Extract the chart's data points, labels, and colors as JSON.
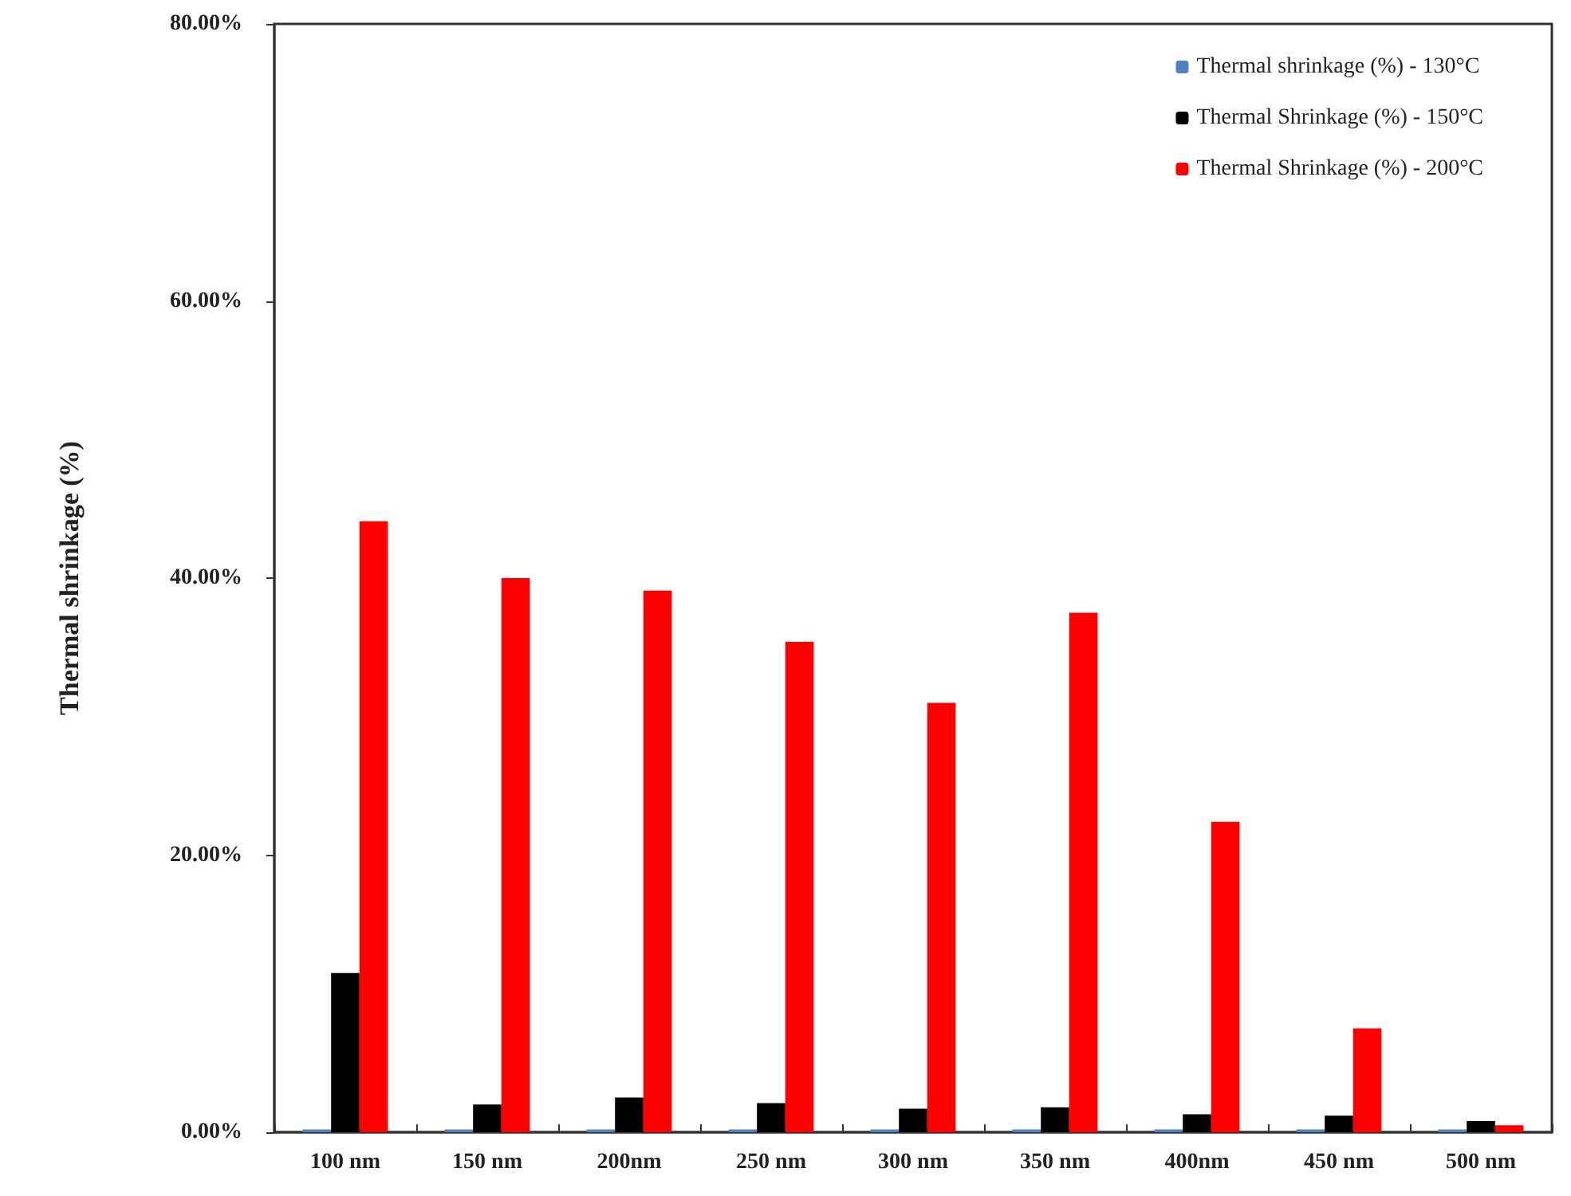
{
  "chart_data": {
    "type": "bar",
    "ylabel": "Thermal shrinkage (%)",
    "categories": [
      "100 nm",
      "150 nm",
      "200nm",
      "250 nm",
      "300 nm",
      "350 nm",
      "400nm",
      "450 nm",
      "500 nm"
    ],
    "series": [
      {
        "name": "Thermal shrinkage (%) - 130°C",
        "color": "#4f81bd",
        "values": [
          0.2,
          0.2,
          0.2,
          0.2,
          0.2,
          0.2,
          0.2,
          0.2,
          0.2
        ]
      },
      {
        "name": "Thermal Shrinkage (%) - 150°C",
        "color": "#000000",
        "values": [
          11.5,
          2,
          2.5,
          2.1,
          1.7,
          1.8,
          1.3,
          1.2,
          0.8
        ]
      },
      {
        "name": "Thermal Shrinkage (%) - 200°C",
        "color": "#ff0000",
        "values": [
          44.1,
          40,
          39.1,
          35.4,
          31,
          37.5,
          22.4,
          7.5,
          0.5
        ]
      }
    ],
    "ylim": [
      0,
      80
    ],
    "yticks": [
      {
        "value": 0,
        "label": "0.00%"
      },
      {
        "value": 20,
        "label": "20.00%"
      },
      {
        "value": 40,
        "label": "40.00%"
      },
      {
        "value": 60,
        "label": "60.00%"
      },
      {
        "value": 80,
        "label": "80.00%"
      }
    ],
    "grid": false,
    "legend": "top right"
  }
}
